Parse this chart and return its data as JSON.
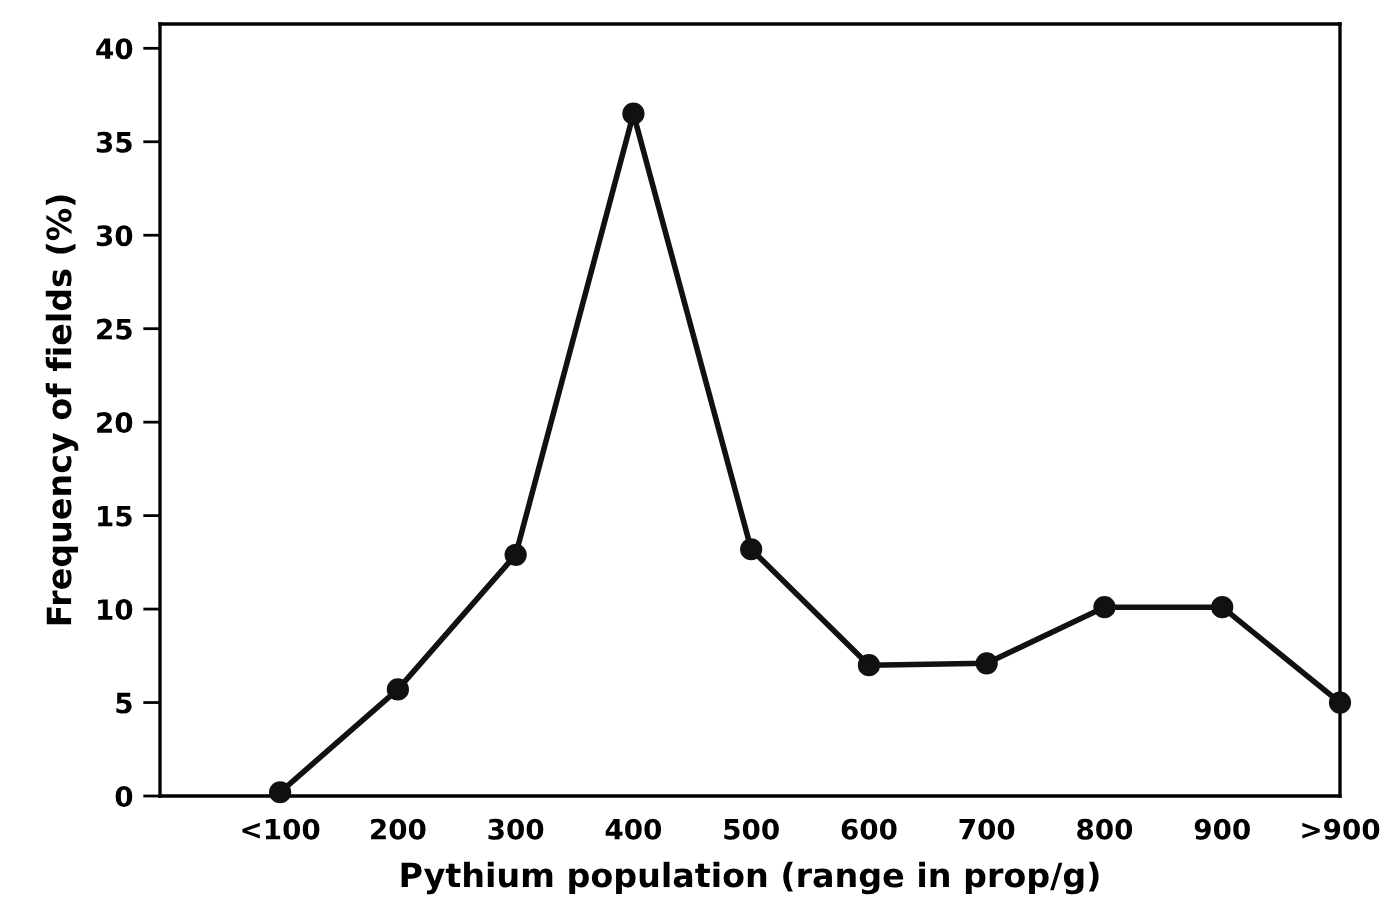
{
  "chart_data": {
    "type": "line",
    "xlabel": "Pythium population (range in prop/g)",
    "ylabel": "Frequency of fields (%)",
    "categories": [
      "<100",
      "200",
      "300",
      "400",
      "500",
      "600",
      "700",
      "800",
      "900",
      ">900"
    ],
    "series": [
      {
        "color": "#111111",
        "values": [
          0.2,
          5.7,
          12.9,
          36.5,
          13.2,
          7.0,
          7.1,
          10.1,
          10.1,
          5.0
        ]
      }
    ],
    "ylim": [
      0,
      41.3
    ],
    "yticks": [
      0,
      5,
      10,
      15,
      20,
      25,
      30,
      35,
      40
    ],
    "marker": "circle",
    "line_style": "solid",
    "grid": false,
    "legend": false
  }
}
